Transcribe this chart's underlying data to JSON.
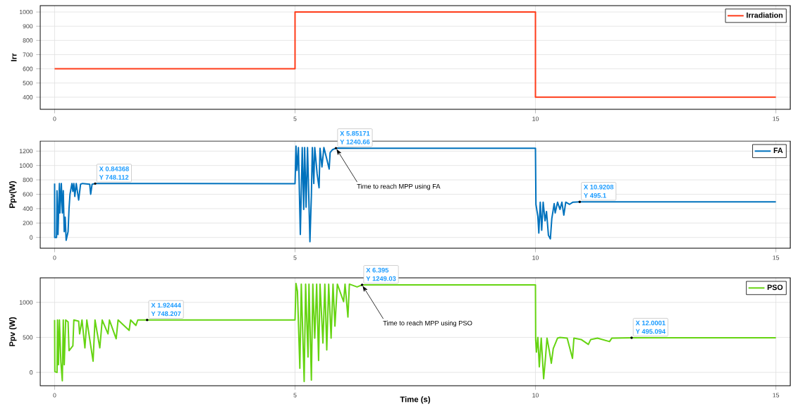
{
  "chart_data": [
    {
      "type": "line",
      "ylabel": "Irr",
      "x": [
        0,
        5,
        5,
        10,
        10,
        15
      ],
      "series": [
        {
          "name": "Irradiation",
          "color": "#ff3c1a",
          "values": [
            600,
            600,
            1000,
            1000,
            400,
            400
          ]
        }
      ],
      "xlim": [
        -0.3,
        15.3
      ],
      "xticks": [
        0,
        5,
        10,
        15
      ],
      "ylim": [
        315,
        1045
      ],
      "yticks": [
        400,
        500,
        600,
        700,
        800,
        900,
        1000
      ],
      "grid": true,
      "legend": "top right",
      "marker": "none",
      "line_style": "solid"
    },
    {
      "type": "line",
      "ylabel": "Ppv(W)",
      "x": [
        0,
        0.002,
        0.04,
        0.05,
        0.07,
        0.1,
        0.11,
        0.14,
        0.16,
        0.18,
        0.2,
        0.22,
        0.24,
        0.28,
        0.3,
        0.32,
        0.36,
        0.38,
        0.4,
        0.42,
        0.45,
        0.5,
        0.54,
        0.58,
        0.73,
        0.75,
        0.78,
        0.84368,
        5.0,
        5.02,
        5.04,
        5.07,
        5.11,
        5.15,
        5.18,
        5.2,
        5.23,
        5.26,
        5.31,
        5.34,
        5.36,
        5.39,
        5.41,
        5.46,
        5.5,
        5.52,
        5.56,
        5.6,
        5.66,
        5.71,
        5.73,
        5.78,
        5.85171,
        10.0,
        10.01,
        10.05,
        10.07,
        10.1,
        10.13,
        10.16,
        10.2,
        10.23,
        10.27,
        10.31,
        10.34,
        10.39,
        10.41,
        10.46,
        10.51,
        10.55,
        10.59,
        10.63,
        10.71,
        10.78,
        10.9208,
        15
      ],
      "series": [
        {
          "name": "FA",
          "color": "#0072bd",
          "values": [
            750,
            0,
            0,
            650,
            40,
            750,
            340,
            750,
            340,
            650,
            80,
            280,
            -40,
            80,
            400,
            600,
            750,
            640,
            750,
            570,
            750,
            520,
            740,
            750,
            740,
            600,
            740,
            748.112,
            748,
            1270,
            930,
            1250,
            40,
            1250,
            390,
            1250,
            420,
            1250,
            -60,
            590,
            1250,
            750,
            1250,
            880,
            690,
            1240,
            980,
            1250,
            1090,
            950,
            1180,
            1220,
            1240.66,
            1240,
            460,
            290,
            60,
            490,
            100,
            490,
            230,
            360,
            30,
            -20,
            260,
            470,
            340,
            490,
            390,
            490,
            310,
            490,
            460,
            490,
            495.1,
            495
          ]
        }
      ],
      "xlim": [
        -0.3,
        15.3
      ],
      "xticks": [
        0,
        5,
        10,
        15
      ],
      "ylim": [
        -150,
        1340
      ],
      "yticks": [
        0,
        200,
        400,
        600,
        800,
        1000,
        1200
      ],
      "grid": true,
      "legend": "top right",
      "marker": "none",
      "line_style": "solid",
      "annotations": [
        {
          "text": "X 0.84368",
          "x": 0.84368,
          "y": 748.112
        },
        {
          "text": "Y 748.112",
          "x": 0.84368,
          "y": 748.112
        },
        {
          "text": "X 5.85171",
          "x": 5.85171,
          "y": 1240.66
        },
        {
          "text": "Y 1240.66",
          "x": 5.85171,
          "y": 1240.66
        },
        {
          "text": "Time to reach MPP using FA",
          "x": 5.85171,
          "y": 1240.66
        },
        {
          "text": "X 10.9208",
          "x": 10.9208,
          "y": 495.1
        },
        {
          "text": "Y 495.1",
          "x": 10.9208,
          "y": 495.1
        }
      ]
    },
    {
      "type": "line",
      "ylabel": "Ppv (W)",
      "xlabel": "Time (s)",
      "x": [
        0,
        0.005,
        0.05,
        0.06,
        0.08,
        0.1,
        0.13,
        0.16,
        0.18,
        0.2,
        0.23,
        0.28,
        0.3,
        0.38,
        0.4,
        0.5,
        0.52,
        0.57,
        0.63,
        0.67,
        0.8,
        0.84,
        0.94,
        0.99,
        1.11,
        1.14,
        1.28,
        1.32,
        1.55,
        1.58,
        1.69,
        1.73,
        1.92444,
        5.0,
        5.02,
        5.05,
        5.1,
        5.13,
        5.19,
        5.22,
        5.27,
        5.29,
        5.34,
        5.37,
        5.41,
        5.45,
        5.49,
        5.52,
        5.58,
        5.62,
        5.66,
        5.7,
        5.75,
        5.79,
        5.83,
        5.88,
        6.01,
        6.04,
        6.1,
        6.13,
        6.29,
        6.395,
        10.0,
        10.005,
        10.02,
        10.05,
        10.08,
        10.12,
        10.17,
        10.21,
        10.24,
        10.29,
        10.33,
        10.37,
        10.46,
        10.51,
        10.66,
        10.77,
        10.8,
        10.95,
        11.1,
        11.15,
        11.29,
        11.54,
        11.59,
        12.0001,
        15
      ],
      "series": [
        {
          "name": "PSO",
          "color": "#66d412",
          "values": [
            748,
            10,
            0,
            748,
            110,
            748,
            150,
            -120,
            748,
            110,
            748,
            720,
            310,
            380,
            748,
            730,
            550,
            748,
            350,
            748,
            160,
            748,
            350,
            748,
            550,
            748,
            480,
            748,
            600,
            748,
            670,
            748,
            748.207,
            748,
            1270,
            1160,
            60,
            1260,
            -130,
            1260,
            220,
            1260,
            -110,
            1260,
            490,
            1260,
            170,
            1260,
            420,
            1260,
            320,
            1260,
            490,
            1260,
            660,
            1260,
            1010,
            1260,
            790,
            1260,
            1220,
            1249.03,
            1249,
            460,
            290,
            500,
            80,
            490,
            -90,
            220,
            490,
            300,
            130,
            340,
            490,
            500,
            490,
            200,
            490,
            470,
            400,
            470,
            490,
            440,
            490,
            495.094,
            495
          ]
        }
      ],
      "xlim": [
        -0.3,
        15.3
      ],
      "xticks": [
        0,
        5,
        10,
        15
      ],
      "ylim": [
        -190,
        1350
      ],
      "yticks": [
        0,
        500,
        1000
      ],
      "grid": true,
      "legend": "top right",
      "marker": "none",
      "line_style": "solid",
      "annotations": [
        {
          "text": "X 1.92444",
          "x": 1.92444,
          "y": 748.207
        },
        {
          "text": "Y 748.207",
          "x": 1.92444,
          "y": 748.207
        },
        {
          "text": "X 6.395",
          "x": 6.395,
          "y": 1249.03
        },
        {
          "text": "Y 1249.03",
          "x": 6.395,
          "y": 1249.03
        },
        {
          "text": "Time to reach MPP using PSO",
          "x": 6.395,
          "y": 1249.03
        },
        {
          "text": "X 12.0001",
          "x": 12.0001,
          "y": 495.094
        },
        {
          "text": "Y 495.094",
          "x": 12.0001,
          "y": 495.094
        }
      ]
    }
  ]
}
